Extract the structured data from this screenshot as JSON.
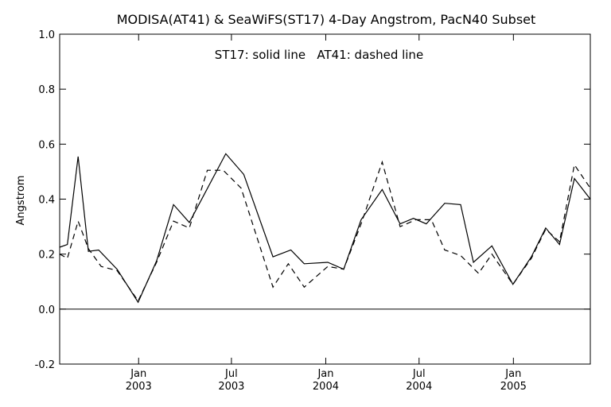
{
  "chart_data": {
    "type": "line",
    "title": "MODISA(AT41) & SeaWiFS(ST17) 4-Day Angstrom, PacN40 Subset",
    "annotation": "ST17: solid line   AT41: dashed line",
    "xlabel": "",
    "ylabel": "Angstrom",
    "ylim": [
      -0.2,
      1.0
    ],
    "yticks": [
      "1.0",
      "0.8",
      "0.6",
      "0.4",
      "0.2",
      "0.0",
      "-0.2"
    ],
    "ytick_values": [
      1.0,
      0.8,
      0.6,
      0.4,
      0.2,
      0.0,
      -0.2
    ],
    "xlim": [
      "2002-07-31",
      "2005-05-31"
    ],
    "xticks": [
      {
        "date": "2003-01-01",
        "line1": "Jan",
        "line2": "2003"
      },
      {
        "date": "2003-07-01",
        "line1": "Jul",
        "line2": "2003"
      },
      {
        "date": "2004-01-01",
        "line1": "Jan",
        "line2": "2004"
      },
      {
        "date": "2004-07-01",
        "line1": "Jul",
        "line2": "2004"
      },
      {
        "date": "2005-01-01",
        "line1": "Jan",
        "line2": "2005"
      }
    ],
    "reference_line": 0.0,
    "grid": false,
    "series": [
      {
        "style": "solid",
        "color": "#000000",
        "points": [
          [
            "2002-07-31",
            0.225
          ],
          [
            "2002-08-15",
            0.235
          ],
          [
            "2002-09-05",
            0.555
          ],
          [
            "2002-09-25",
            0.21
          ],
          [
            "2002-10-15",
            0.215
          ],
          [
            "2002-11-20",
            0.145
          ],
          [
            "2002-12-31",
            0.025
          ],
          [
            "2003-02-05",
            0.175
          ],
          [
            "2003-03-10",
            0.38
          ],
          [
            "2003-04-10",
            0.315
          ],
          [
            "2003-06-20",
            0.565
          ],
          [
            "2003-07-25",
            0.49
          ],
          [
            "2003-09-20",
            0.19
          ],
          [
            "2003-10-25",
            0.215
          ],
          [
            "2003-11-20",
            0.165
          ],
          [
            "2004-01-05",
            0.17
          ],
          [
            "2004-02-05",
            0.145
          ],
          [
            "2004-03-10",
            0.325
          ],
          [
            "2004-04-20",
            0.435
          ],
          [
            "2004-05-25",
            0.31
          ],
          [
            "2004-06-20",
            0.33
          ],
          [
            "2004-07-15",
            0.31
          ],
          [
            "2004-08-20",
            0.385
          ],
          [
            "2004-09-20",
            0.38
          ],
          [
            "2004-10-15",
            0.17
          ],
          [
            "2004-11-20",
            0.23
          ],
          [
            "2004-12-31",
            0.09
          ],
          [
            "2005-02-05",
            0.19
          ],
          [
            "2005-03-05",
            0.295
          ],
          [
            "2005-04-01",
            0.235
          ],
          [
            "2005-04-30",
            0.475
          ],
          [
            "2005-05-31",
            0.4
          ]
        ]
      },
      {
        "style": "dashed",
        "color": "#000000",
        "points": [
          [
            "2002-07-31",
            0.2
          ],
          [
            "2002-08-15",
            0.185
          ],
          [
            "2002-09-05",
            0.32
          ],
          [
            "2002-09-25",
            0.22
          ],
          [
            "2002-10-20",
            0.155
          ],
          [
            "2002-11-20",
            0.14
          ],
          [
            "2002-12-31",
            0.03
          ],
          [
            "2003-02-05",
            0.17
          ],
          [
            "2003-03-10",
            0.32
          ],
          [
            "2003-04-10",
            0.295
          ],
          [
            "2003-05-15",
            0.505
          ],
          [
            "2003-06-15",
            0.505
          ],
          [
            "2003-07-20",
            0.44
          ],
          [
            "2003-09-20",
            0.08
          ],
          [
            "2003-10-20",
            0.165
          ],
          [
            "2003-11-20",
            0.08
          ],
          [
            "2004-01-05",
            0.155
          ],
          [
            "2004-02-05",
            0.145
          ],
          [
            "2004-03-10",
            0.31
          ],
          [
            "2004-04-20",
            0.535
          ],
          [
            "2004-05-25",
            0.3
          ],
          [
            "2004-06-25",
            0.325
          ],
          [
            "2004-07-25",
            0.325
          ],
          [
            "2004-08-20",
            0.215
          ],
          [
            "2004-09-20",
            0.195
          ],
          [
            "2004-10-25",
            0.13
          ],
          [
            "2004-11-20",
            0.2
          ],
          [
            "2004-12-31",
            0.09
          ],
          [
            "2005-02-05",
            0.185
          ],
          [
            "2005-03-05",
            0.29
          ],
          [
            "2005-04-01",
            0.245
          ],
          [
            "2005-04-30",
            0.525
          ],
          [
            "2005-05-31",
            0.44
          ]
        ]
      }
    ]
  }
}
